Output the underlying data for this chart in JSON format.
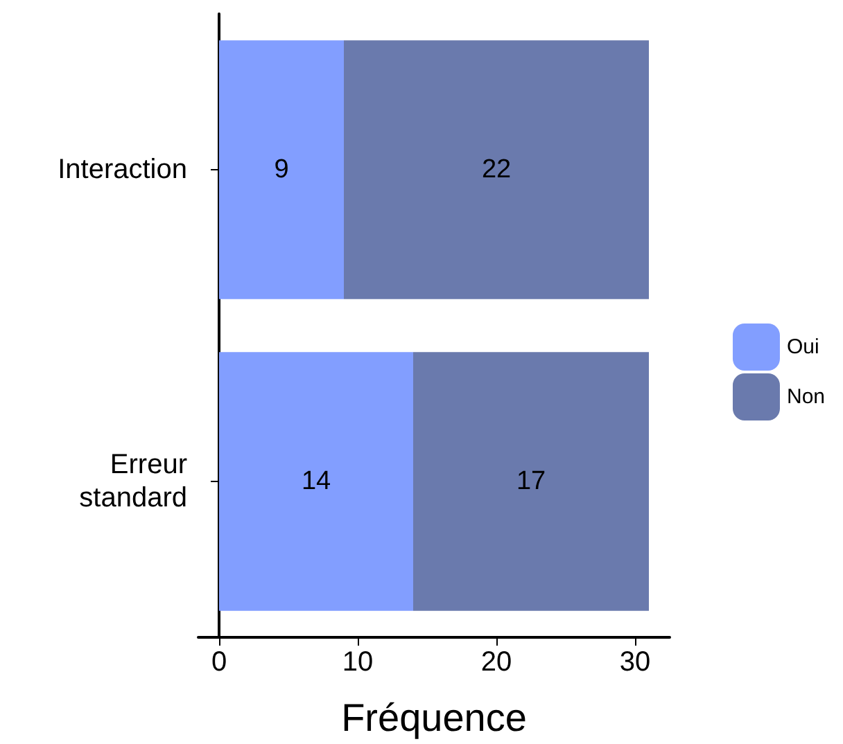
{
  "chart_data": {
    "type": "bar",
    "orientation": "horizontal",
    "stacked": true,
    "xlabel": "Fréquence",
    "categories": [
      "Interaction",
      "Erreur\nstandard"
    ],
    "series": [
      {
        "name": "Oui",
        "color": "#829eff",
        "values": [
          9,
          14
        ]
      },
      {
        "name": "Non",
        "color": "#6a7aad",
        "values": [
          22,
          17
        ]
      }
    ],
    "xlim": [
      -1.5,
      32.5
    ],
    "xticks": [
      0,
      10,
      20,
      30
    ],
    "data_labels": true,
    "legend": "right",
    "grid": false
  }
}
